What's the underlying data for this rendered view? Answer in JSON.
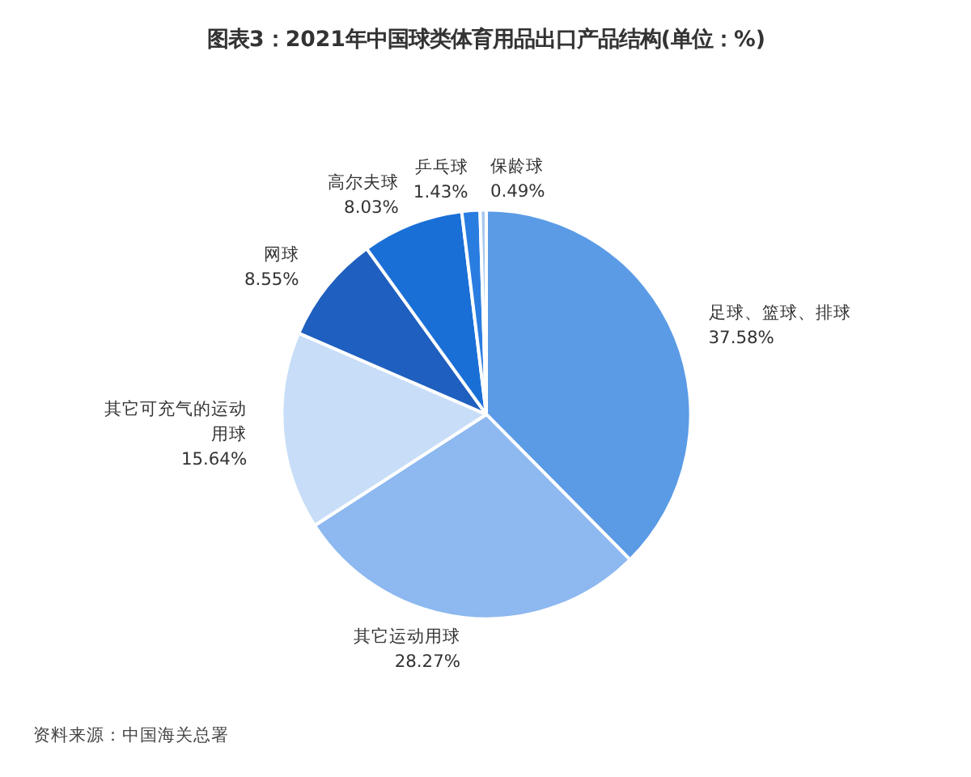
{
  "chart_data": {
    "type": "pie",
    "title": "图表3：2021年中国球类体育用品出口产品结构(单位：%)",
    "categories": [
      "足球、篮球、排球",
      "其它运动用球",
      "其它可充气的运动用球",
      "网球",
      "高尔夫球",
      "乒乓球",
      "保龄球"
    ],
    "values": [
      37.58,
      28.27,
      15.64,
      8.55,
      8.03,
      1.43,
      0.49
    ],
    "value_labels": [
      "37.58%",
      "28.27%",
      "15.64%",
      "8.55%",
      "8.03%",
      "1.43%",
      "0.49%"
    ],
    "colors": [
      "#5b9be6",
      "#8db8f0",
      "#c8ddf7",
      "#1f5fbf",
      "#1a6fd6",
      "#2a7de0",
      "#a9c8ee"
    ],
    "annotations": [
      "资料来源：中国海关总署"
    ]
  }
}
